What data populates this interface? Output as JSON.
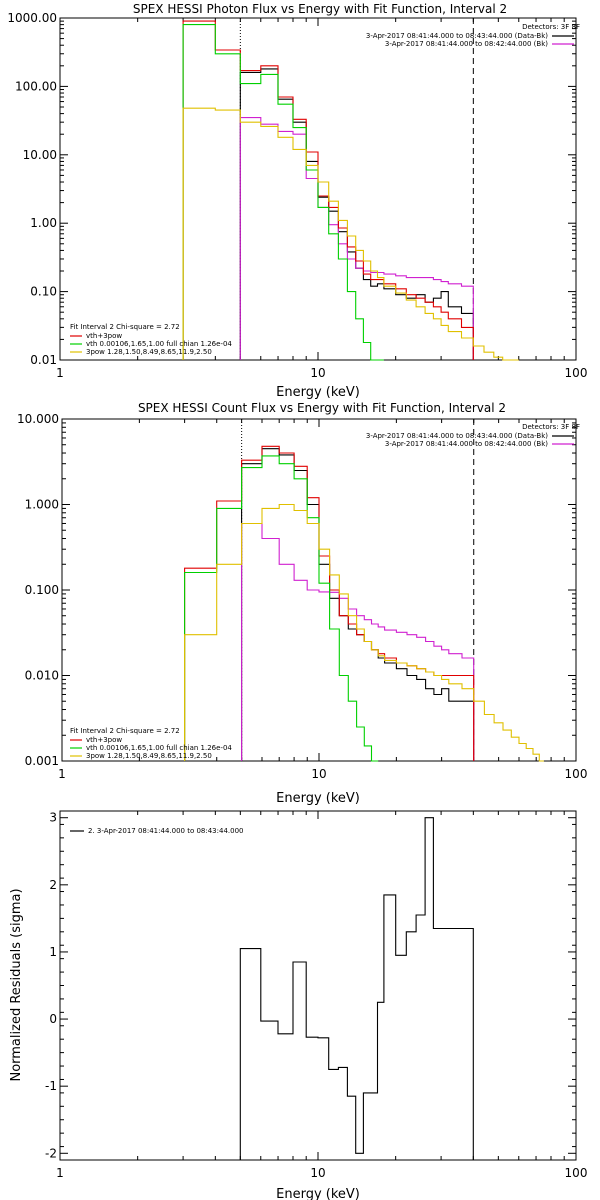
{
  "chart_data": [
    {
      "type": "line",
      "title": "SPEX HESSI Photon Flux vs Energy with Fit Function, Interval 2",
      "xlabel": "Energy (keV)",
      "ylabel": "",
      "xscale": "log",
      "yscale": "log",
      "xlim": [
        1,
        100
      ],
      "ylim": [
        0.01,
        1000
      ],
      "xticks": [
        1,
        10,
        100
      ],
      "xtick_labels": [
        "1",
        "10",
        "100"
      ],
      "yticks": [
        0.01,
        0.1,
        1,
        10,
        100,
        1000
      ],
      "ytick_labels": [
        "0.01",
        "0.10",
        "1.00",
        "10.00",
        "100.00",
        "1000.00"
      ],
      "grid": false,
      "vlines": [
        {
          "x": 5,
          "style": "dotted"
        },
        {
          "x": 40,
          "style": "dashed"
        }
      ],
      "legend_top": {
        "heading": "Detectors: 3F 8F",
        "entries": [
          {
            "label": "3-Apr-2017 08:41:44.000 to 08:43:44.000 (Data-Bk)",
            "color": "#000000"
          },
          {
            "label": "3-Apr-2017 08:41:44.000 to 08:42:44.000 (Bk)",
            "color": "#d020d0"
          }
        ],
        "placement": "top-right"
      },
      "legend_bottom": {
        "heading": "Fit Interval 2   Chi-square = 2.72",
        "entries": [
          {
            "label": "vth+3pow",
            "color": "#e00000"
          },
          {
            "label": "vth 0.00106,1.65,1.00  full chian 1.26e-04",
            "color": "#00d000"
          },
          {
            "label": "3pow 1.28,1.50,8.49,8.65,11.9,2.50",
            "color": "#e0c000"
          }
        ],
        "placement": "bottom-left"
      },
      "edges": [
        3,
        4,
        5,
        6,
        7,
        8,
        9,
        10,
        11,
        12,
        13,
        14,
        15,
        16,
        17,
        18,
        20,
        22,
        24,
        26,
        28,
        30,
        32,
        36,
        40
      ],
      "series": [
        {
          "color": "#000000",
          "x_range": [
            5,
            40
          ],
          "values": [
            null,
            null,
            160,
            180,
            65,
            30,
            8,
            2.4,
            1.5,
            0.75,
            0.38,
            0.22,
            0.15,
            0.12,
            0.13,
            0.11,
            0.09,
            0.08,
            0.09,
            0.07,
            0.08,
            0.1,
            0.06,
            0.048
          ]
        },
        {
          "color": "#d020d0",
          "x_range": [
            5,
            40
          ],
          "values": [
            null,
            null,
            35,
            28,
            22,
            20,
            4.5,
            1.7,
            0.95,
            0.5,
            0.3,
            0.22,
            0.2,
            0.19,
            0.19,
            0.18,
            0.17,
            0.16,
            0.16,
            0.16,
            0.15,
            0.14,
            0.13,
            0.12
          ]
        },
        {
          "color": "#e00000",
          "x_range": [
            3,
            40
          ],
          "values": [
            900,
            340,
            170,
            200,
            70,
            33,
            11,
            2.5,
            1.7,
            0.85,
            0.45,
            0.28,
            0.18,
            0.15,
            0.15,
            0.13,
            0.11,
            0.09,
            0.08,
            0.07,
            0.06,
            0.05,
            0.04,
            0.03
          ]
        },
        {
          "color": "#00d000",
          "x_range": [
            3,
            18
          ],
          "values": [
            800,
            300,
            110,
            150,
            55,
            25,
            6,
            1.7,
            0.7,
            0.3,
            0.1,
            0.04,
            0.018,
            0.01,
            0.008
          ]
        },
        {
          "color": "#e0c000",
          "x_range": [
            3,
            60
          ],
          "values": [
            48,
            45,
            30,
            26,
            18,
            12,
            7,
            4,
            2.1,
            1.1,
            0.65,
            0.4,
            0.28,
            0.2,
            0.16,
            0.12,
            0.095,
            0.075,
            0.06,
            0.048,
            0.04,
            0.032,
            0.026,
            0.021,
            0.016,
            0.013,
            0.011,
            0.009,
            0.008
          ]
        }
      ],
      "tail_edges": [
        40,
        44,
        48,
        52,
        56,
        60
      ]
    },
    {
      "type": "line",
      "title": "SPEX HESSI Count Flux vs Energy with Fit Function, Interval 2",
      "xlabel": "Energy (keV)",
      "ylabel": "",
      "xscale": "log",
      "yscale": "log",
      "xlim": [
        1,
        100
      ],
      "ylim": [
        0.001,
        10
      ],
      "xticks": [
        1,
        10,
        100
      ],
      "xtick_labels": [
        "1",
        "10",
        "100"
      ],
      "yticks": [
        0.001,
        0.01,
        0.1,
        1,
        10
      ],
      "ytick_labels": [
        "0.001",
        "0.010",
        "0.100",
        "1.000",
        "10.000"
      ],
      "grid": false,
      "vlines": [
        {
          "x": 5,
          "style": "dotted"
        },
        {
          "x": 40,
          "style": "dashed"
        }
      ],
      "legend_top": {
        "heading": "Detectors: 3F 8F",
        "entries": [
          {
            "label": "3-Apr-2017 08:41:44.000 to 08:43:44.000 (Data-Bk)",
            "color": "#000000"
          },
          {
            "label": "3-Apr-2017 08:41:44.000 to 08:42:44.000 (Bk)",
            "color": "#d020d0"
          }
        ],
        "placement": "top-right"
      },
      "legend_bottom": {
        "heading": "Fit Interval 2   Chi-square = 2.72",
        "entries": [
          {
            "label": "vth+3pow",
            "color": "#e00000"
          },
          {
            "label": "vth 0.00106,1.65,1.00  full chian 1.26e-04",
            "color": "#00d000"
          },
          {
            "label": "3pow 1.28,1.50,8.49,8.65,11.9,2.50",
            "color": "#e0c000"
          }
        ],
        "placement": "bottom-left"
      },
      "edges": [
        3,
        4,
        5,
        6,
        7,
        8,
        9,
        10,
        11,
        12,
        13,
        14,
        15,
        16,
        17,
        18,
        20,
        22,
        24,
        26,
        28,
        30,
        32,
        36,
        40
      ],
      "series": [
        {
          "color": "#000000",
          "x_range": [
            5,
            40
          ],
          "values": [
            null,
            null,
            3.0,
            4.5,
            3.8,
            2.5,
            1.0,
            0.2,
            0.08,
            0.05,
            0.035,
            0.03,
            0.025,
            0.02,
            0.016,
            0.014,
            0.012,
            0.01,
            0.009,
            0.007,
            0.006,
            0.007,
            0.005,
            0.005
          ]
        },
        {
          "color": "#d020d0",
          "x_range": [
            5,
            40
          ],
          "values": [
            null,
            null,
            0.6,
            0.4,
            0.2,
            0.13,
            0.1,
            0.095,
            0.094,
            0.08,
            0.06,
            0.05,
            0.045,
            0.04,
            0.037,
            0.034,
            0.032,
            0.03,
            0.028,
            0.025,
            0.022,
            0.02,
            0.018,
            0.016
          ]
        },
        {
          "color": "#e00000",
          "x_range": [
            3,
            40
          ],
          "values": [
            0.18,
            1.1,
            3.3,
            4.8,
            4.0,
            2.8,
            1.2,
            0.25,
            0.1,
            0.05,
            0.04,
            0.03,
            0.025,
            0.02,
            0.018,
            0.016,
            0.014,
            0.013,
            0.012,
            0.011,
            0.01,
            0.01,
            0.01,
            0.01
          ]
        },
        {
          "color": "#00d000",
          "x_range": [
            3,
            18
          ],
          "values": [
            0.16,
            0.9,
            2.7,
            3.7,
            3.0,
            2.0,
            0.7,
            0.12,
            0.035,
            0.01,
            0.005,
            0.0025,
            0.0015,
            0.001
          ]
        },
        {
          "color": "#e0c000",
          "x_range": [
            3,
            75
          ],
          "values": [
            0.03,
            0.2,
            0.6,
            0.9,
            1.0,
            0.85,
            0.6,
            0.3,
            0.15,
            0.09,
            0.05,
            0.035,
            0.025,
            0.02,
            0.017,
            0.015,
            0.014,
            0.013,
            0.012,
            0.011,
            0.01,
            0.009,
            0.008,
            0.007,
            0.005,
            0.0035,
            0.0028,
            0.0023,
            0.0019,
            0.0016,
            0.0014,
            0.0012,
            0.001
          ]
        }
      ],
      "tail_edges": [
        40,
        44,
        48,
        52,
        56,
        60,
        64,
        68,
        72,
        75
      ]
    },
    {
      "type": "line",
      "title": "",
      "xlabel": "Energy (keV)",
      "ylabel": "Normalized Residuals (sigma)",
      "xscale": "log",
      "yscale": "linear",
      "xlim": [
        1,
        100
      ],
      "ylim": [
        -2.1,
        3.1
      ],
      "xticks": [
        1,
        10,
        100
      ],
      "xtick_labels": [
        "1",
        "10",
        "100"
      ],
      "yticks": [
        -2,
        -1,
        0,
        1,
        2,
        3
      ],
      "ytick_labels": [
        "-2",
        "-1",
        "0",
        "1",
        "2",
        "3"
      ],
      "grid": false,
      "legend": {
        "entries": [
          {
            "label": "2. 3-Apr-2017 08:41:44.000 to 08:43:44.000",
            "color": "#000000"
          }
        ],
        "placement": "top-left"
      },
      "edges": [
        5,
        6,
        7,
        8,
        9,
        10,
        11,
        12,
        13,
        14,
        15,
        16,
        17,
        18,
        20,
        22,
        24,
        26,
        28,
        30,
        32,
        36,
        40
      ],
      "series": [
        {
          "color": "#000000",
          "values": [
            1.05,
            -0.03,
            -0.22,
            0.85,
            -0.27,
            -0.28,
            -0.75,
            -0.72,
            -1.15,
            -2.0,
            -1.1,
            -1.1,
            0.25,
            1.85,
            0.95,
            1.3,
            1.55,
            3.0,
            1.35,
            1.35,
            1.35,
            1.35
          ]
        }
      ]
    }
  ]
}
